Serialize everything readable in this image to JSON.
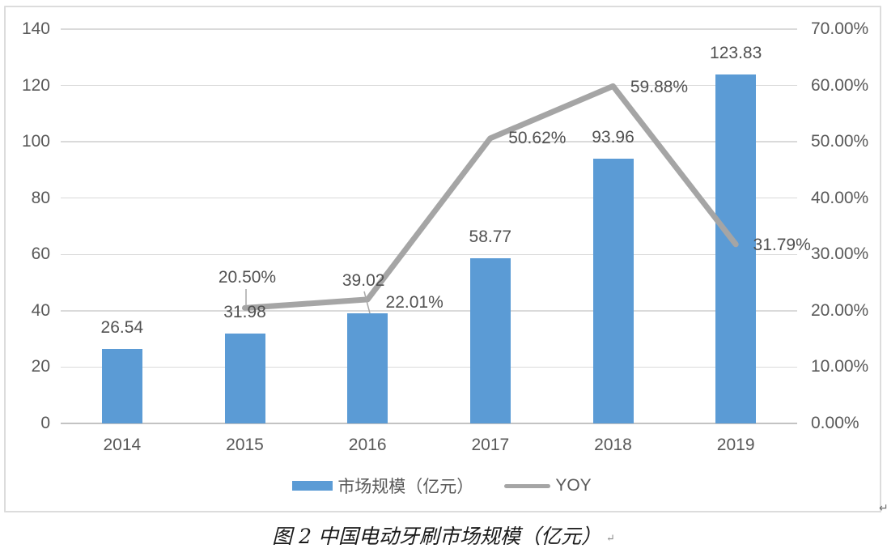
{
  "chart_data": {
    "type": "bar",
    "subtype": "combo-bar-line",
    "title": "",
    "categories": [
      "2014",
      "2015",
      "2016",
      "2017",
      "2018",
      "2019"
    ],
    "series": [
      {
        "name": "市场规模（亿元）",
        "type": "bar",
        "axis": "left",
        "color": "#5B9BD5",
        "values": [
          26.54,
          31.98,
          39.02,
          58.77,
          93.96,
          123.83
        ],
        "labels": [
          "26.54",
          "31.98",
          "39.02",
          "58.77",
          "93.96",
          "123.83"
        ]
      },
      {
        "name": "YOY",
        "type": "line",
        "axis": "right",
        "color": "#A5A5A5",
        "values": [
          null,
          20.5,
          22.01,
          50.62,
          59.88,
          31.79
        ],
        "labels": [
          null,
          "20.50%",
          "22.01%",
          "50.62%",
          "59.88%",
          "31.79%"
        ]
      }
    ],
    "left_axis": {
      "min": 0,
      "max": 140,
      "step": 20,
      "ticks": [
        "0",
        "20",
        "40",
        "60",
        "80",
        "100",
        "120",
        "140"
      ]
    },
    "right_axis": {
      "min": 0,
      "max": 70,
      "step": 10,
      "ticks": [
        "0.00%",
        "10.00%",
        "20.00%",
        "30.00%",
        "40.00%",
        "50.00%",
        "60.00%",
        "70.00%"
      ]
    },
    "grid": true,
    "legend": {
      "position": "bottom",
      "entries": [
        {
          "label": "市场规模（亿元）",
          "swatch": "bar",
          "color": "#5B9BD5"
        },
        {
          "label": "YOY",
          "swatch": "line",
          "color": "#A5A5A5"
        }
      ]
    }
  },
  "marks": {
    "frame_return": "↵",
    "caption_return": "↵"
  },
  "caption": {
    "text": "图 2 中国电动牙刷市场规模（亿元）"
  },
  "colors": {
    "bar": "#5B9BD5",
    "line": "#A5A5A5",
    "gridline": "#DADADA",
    "axis_line": "#C3C3C3",
    "tick_text": "#595959",
    "data_label_text": "#515151",
    "frame_border": "#DCDCDC"
  }
}
